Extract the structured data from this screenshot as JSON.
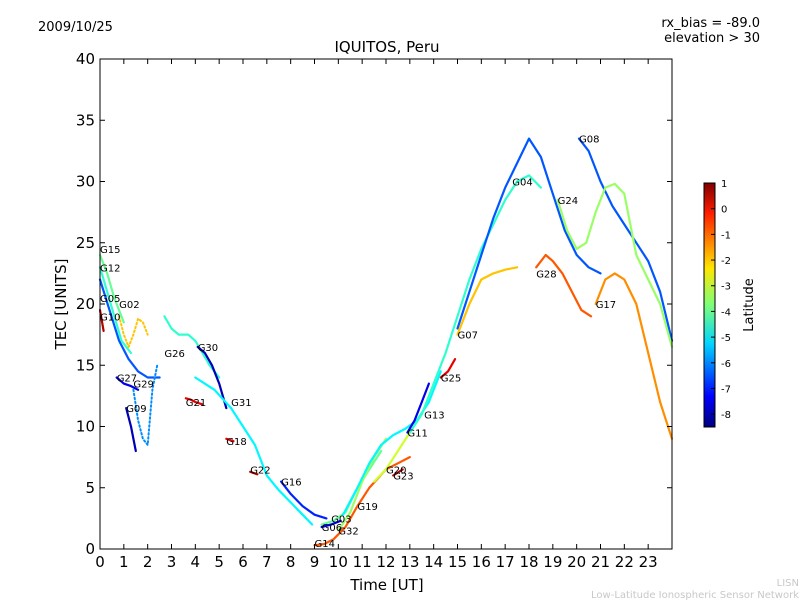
{
  "date_label": "2009/10/25",
  "bias_label": "rx_bias = -89.0",
  "elevation_label": "elevation > 30",
  "credit": {
    "org": "LISN",
    "full": "Low-Latitude Ionospheric Sensor Network"
  },
  "chart_data": {
    "type": "line",
    "title": "IQUITOS, Peru",
    "xlabel": "Time [UT]",
    "ylabel": "TEC [UNITS]",
    "xlim": [
      0,
      24
    ],
    "ylim": [
      0,
      40
    ],
    "x_ticks": [
      0,
      1,
      2,
      3,
      4,
      5,
      6,
      7,
      8,
      9,
      10,
      11,
      12,
      13,
      14,
      15,
      16,
      17,
      18,
      19,
      20,
      21,
      22,
      23
    ],
    "y_ticks": [
      0,
      5,
      10,
      15,
      20,
      25,
      30,
      35,
      40
    ],
    "grid": false,
    "colorbar": {
      "label": "Latitude",
      "range": [
        -8.5,
        1
      ],
      "ticks": [
        1,
        0,
        -1,
        -2,
        -3,
        -4,
        -5,
        -6,
        -7,
        -8
      ]
    },
    "series": [
      {
        "name": "G15",
        "label_at": [
          0.0,
          24.5
        ],
        "lat": -4.0,
        "x": [
          0.0,
          0.3,
          0.6,
          1.0
        ],
        "y": [
          24.0,
          22.5,
          20.5,
          18.5
        ]
      },
      {
        "name": "G12",
        "label_at": [
          0.0,
          23.0
        ],
        "lat": -4.5,
        "x": [
          0.0,
          0.3,
          0.6,
          0.9,
          1.3
        ],
        "y": [
          23.0,
          21.0,
          19.0,
          17.0,
          16.0
        ]
      },
      {
        "name": "G05",
        "label_at": [
          0.0,
          20.5
        ],
        "lat": -6.5,
        "x": [
          0.0,
          0.4,
          0.8,
          1.2,
          1.6,
          2.0,
          2.5
        ],
        "y": [
          22.0,
          19.5,
          17.0,
          15.5,
          14.5,
          14.0,
          14.0
        ]
      },
      {
        "name": "G10",
        "label_at": [
          0.0,
          19.0
        ],
        "lat": 0.5,
        "x": [
          0.0,
          0.15
        ],
        "y": [
          19.5,
          17.8
        ]
      },
      {
        "name": "G02",
        "label_at": [
          0.8,
          20.0
        ],
        "lat": -2.0,
        "dashed": true,
        "x": [
          0.8,
          1.0,
          1.2,
          1.4,
          1.6,
          1.8,
          2.0
        ],
        "y": [
          19.0,
          17.5,
          16.5,
          17.5,
          18.8,
          18.5,
          17.5
        ]
      },
      {
        "name": "G26",
        "label_at": [
          2.7,
          16.0
        ],
        "lat": -4.5,
        "x": [
          2.7,
          3.0,
          3.3,
          3.7,
          4.0,
          4.3,
          4.6,
          5.0
        ],
        "y": [
          19.0,
          18.0,
          17.5,
          17.5,
          17.0,
          16.0,
          15.0,
          14.0
        ]
      },
      {
        "name": "G27",
        "label_at": [
          0.7,
          14.0
        ],
        "lat": -7.5,
        "x": [
          0.7,
          1.0,
          1.3,
          1.6
        ],
        "y": [
          14.0,
          13.5,
          13.3,
          13.0
        ]
      },
      {
        "name": "G29",
        "label_at": [
          1.4,
          13.5
        ],
        "lat": -6.0,
        "dashed": true,
        "x": [
          1.4,
          1.6,
          1.8,
          2.0,
          2.2,
          2.4
        ],
        "y": [
          13.0,
          10.5,
          9.0,
          8.5,
          13.0,
          15.0
        ]
      },
      {
        "name": "G09",
        "label_at": [
          1.1,
          11.5
        ],
        "lat": -8.0,
        "x": [
          1.1,
          1.3,
          1.5
        ],
        "y": [
          11.5,
          10.0,
          8.0
        ]
      },
      {
        "name": "G30",
        "label_at": [
          4.1,
          16.5
        ],
        "lat": -8.0,
        "x": [
          4.1,
          4.4,
          4.7,
          5.0,
          5.3
        ],
        "y": [
          16.5,
          16.0,
          15.0,
          13.5,
          11.5
        ]
      },
      {
        "name": "G21",
        "label_at": [
          3.6,
          12.0
        ],
        "lat": 0.0,
        "x": [
          3.6,
          3.8,
          4.0,
          4.3
        ],
        "y": [
          12.3,
          12.2,
          12.0,
          11.8
        ]
      },
      {
        "name": "G31",
        "label_at": [
          5.5,
          12.0
        ],
        "lat": -5.0,
        "x": [
          4.0,
          4.8,
          5.5,
          6.0,
          6.5,
          7.0,
          7.5,
          8.0,
          8.5,
          8.9
        ],
        "y": [
          14.0,
          13.0,
          11.5,
          10.0,
          8.5,
          6.0,
          4.8,
          3.8,
          2.8,
          2.0
        ]
      },
      {
        "name": "G18",
        "label_at": [
          5.3,
          8.8
        ],
        "lat": 0.0,
        "x": [
          5.3,
          5.6
        ],
        "y": [
          9.0,
          8.8
        ]
      },
      {
        "name": "G22",
        "label_at": [
          6.3,
          6.5
        ],
        "lat": 0.5,
        "x": [
          6.3,
          6.6
        ],
        "y": [
          6.3,
          6.1
        ]
      },
      {
        "name": "G16",
        "label_at": [
          7.6,
          5.5
        ],
        "lat": -7.0,
        "x": [
          7.6,
          8.0,
          8.5,
          9.0,
          9.5
        ],
        "y": [
          5.5,
          4.5,
          3.5,
          2.8,
          2.5
        ]
      },
      {
        "name": "G14",
        "label_at": [
          9.0,
          0.5
        ],
        "lat": -1.0,
        "x": [
          9.0,
          9.4,
          9.8,
          10.3,
          10.8,
          11.3,
          12.0,
          12.5,
          13.0
        ],
        "y": [
          0.3,
          0.4,
          0.8,
          1.8,
          3.5,
          5.0,
          6.5,
          7.0,
          7.5
        ]
      },
      {
        "name": "G03",
        "label_at": [
          9.7,
          2.5
        ],
        "lat": -7.5,
        "x": [
          9.3,
          9.7,
          10.1
        ],
        "y": [
          1.8,
          2.0,
          2.3
        ]
      },
      {
        "name": "G06",
        "label_at": [
          9.3,
          1.8
        ],
        "lat": -4.0,
        "x": [
          9.3,
          9.8,
          10.3,
          10.8,
          11.3,
          11.8
        ],
        "y": [
          2.0,
          2.3,
          3.0,
          5.0,
          6.5,
          8.0
        ]
      },
      {
        "name": "G32",
        "label_at": [
          10.0,
          1.5
        ],
        "lat": -3.5,
        "x": [
          10.0,
          10.5,
          11.0,
          11.5,
          12.0
        ],
        "y": [
          1.5,
          3.0,
          5.5,
          7.5,
          9.0
        ]
      },
      {
        "name": "G19",
        "label_at": [
          10.8,
          3.5
        ],
        "lat": -5.0,
        "x": [
          10.2,
          10.8,
          11.3,
          11.8,
          12.3,
          12.8,
          13.3,
          13.8,
          14.3
        ],
        "y": [
          2.8,
          5.0,
          7.0,
          8.5,
          9.3,
          9.8,
          10.5,
          12.0,
          14.5
        ]
      },
      {
        "name": "G20",
        "label_at": [
          12.0,
          6.5
        ],
        "lat": -3.0,
        "x": [
          11.5,
          12.0,
          12.5,
          13.0
        ],
        "y": [
          5.5,
          6.5,
          8.0,
          9.5
        ]
      },
      {
        "name": "G23",
        "label_at": [
          12.3,
          6.0
        ],
        "lat": 0.5,
        "x": [
          12.3,
          12.7
        ],
        "y": [
          6.0,
          6.5
        ]
      },
      {
        "name": "G11",
        "label_at": [
          12.9,
          9.5
        ],
        "lat": -7.5,
        "x": [
          12.9,
          13.2,
          13.5,
          13.8
        ],
        "y": [
          9.5,
          10.5,
          12.0,
          13.5
        ]
      },
      {
        "name": "G13",
        "label_at": [
          13.6,
          11.0
        ],
        "lat": -4.5,
        "x": [
          13.0,
          13.5,
          14.0,
          14.5,
          15.0,
          15.5,
          16.0,
          16.5,
          17.0,
          17.5,
          18.0,
          18.5
        ],
        "y": [
          9.5,
          11.0,
          13.5,
          16.0,
          19.0,
          22.0,
          24.5,
          26.5,
          28.5,
          30.0,
          30.5,
          29.5
        ]
      },
      {
        "name": "G25",
        "label_at": [
          14.3,
          14.0
        ],
        "lat": 0.0,
        "x": [
          14.3,
          14.6,
          14.9
        ],
        "y": [
          14.0,
          14.5,
          15.5
        ]
      },
      {
        "name": "G07",
        "label_at": [
          15.0,
          17.5
        ],
        "lat": -2.0,
        "x": [
          15.0,
          15.5,
          16.0,
          16.5,
          17.0,
          17.5
        ],
        "y": [
          17.5,
          20.0,
          22.0,
          22.5,
          22.8,
          23.0
        ]
      },
      {
        "name": "G04",
        "label_at": [
          17.3,
          30.0
        ],
        "lat": -6.5,
        "x": [
          15.0,
          15.5,
          16.0,
          16.5,
          17.0,
          17.5,
          18.0,
          18.5,
          19.0,
          19.5,
          20.0,
          20.5,
          21.0
        ],
        "y": [
          18.0,
          21.0,
          24.0,
          27.0,
          29.5,
          31.5,
          33.5,
          32.0,
          29.0,
          26.0,
          24.0,
          23.0,
          22.5
        ]
      },
      {
        "name": "G28",
        "label_at": [
          18.3,
          22.5
        ],
        "lat": -1.0,
        "x": [
          18.3,
          18.7,
          19.0,
          19.4,
          19.8,
          20.2,
          20.6
        ],
        "y": [
          23.0,
          24.0,
          23.5,
          22.5,
          21.0,
          19.5,
          19.0
        ]
      },
      {
        "name": "G17",
        "label_at": [
          20.8,
          20.0
        ],
        "lat": -1.5,
        "x": [
          20.8,
          21.2,
          21.6,
          22.0,
          22.5,
          23.0,
          23.5,
          24.0
        ],
        "y": [
          20.0,
          22.0,
          22.5,
          22.0,
          20.0,
          16.0,
          12.0,
          9.0
        ]
      },
      {
        "name": "G08",
        "label_at": [
          20.1,
          33.5
        ],
        "lat": -6.5,
        "x": [
          20.1,
          20.5,
          21.0,
          21.5,
          22.0,
          22.5,
          23.0,
          23.5,
          24.0
        ],
        "y": [
          33.5,
          32.5,
          30.0,
          28.0,
          26.5,
          25.0,
          23.5,
          21.0,
          17.0
        ]
      },
      {
        "name": "G24",
        "label_at": [
          19.2,
          28.5
        ],
        "lat": -3.5,
        "x": [
          19.2,
          19.6,
          20.0,
          20.4,
          20.8,
          21.2,
          21.6,
          22.0,
          22.5,
          23.0,
          23.5,
          24.0
        ],
        "y": [
          28.5,
          26.0,
          24.5,
          25.0,
          27.5,
          29.5,
          29.8,
          29.0,
          24.0,
          22.0,
          20.0,
          16.5
        ]
      }
    ]
  }
}
